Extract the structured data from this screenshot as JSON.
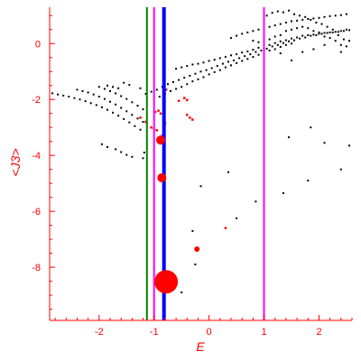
{
  "chart_data": {
    "type": "scatter",
    "title": "",
    "xlabel": "E",
    "ylabel": "<J3>",
    "xlim": [
      -2.9,
      2.6
    ],
    "ylim": [
      -9.9,
      1.3
    ],
    "x_ticks": [
      -2,
      -1,
      0,
      1,
      2
    ],
    "y_ticks": [
      0,
      -2,
      -4,
      -6,
      -8
    ],
    "axis_color": "#ff0000",
    "grid": false,
    "vertical_lines": [
      {
        "x": -1.13,
        "color": "#008000"
      },
      {
        "x": -1.0,
        "color": "#ff00ff"
      },
      {
        "x": -0.82,
        "color": "#0000ff"
      },
      {
        "x": 1.0,
        "color": "#ff00ff"
      }
    ],
    "series": [
      {
        "color": "#000000",
        "points": [
          [
            -2.85,
            -1.78
          ],
          [
            -2.75,
            -1.82
          ],
          [
            -2.65,
            -1.86
          ],
          [
            -2.55,
            -1.9
          ],
          [
            -2.45,
            -1.95
          ],
          [
            -2.35,
            -2.0
          ],
          [
            -2.25,
            -2.06
          ],
          [
            -2.15,
            -2.13
          ],
          [
            -2.05,
            -2.2
          ],
          [
            -1.95,
            -2.28
          ],
          [
            -1.85,
            -2.37
          ],
          [
            -1.75,
            -2.47
          ],
          [
            -1.65,
            -2.58
          ],
          [
            -1.55,
            -2.7
          ],
          [
            -1.45,
            -2.82
          ],
          [
            -1.35,
            -2.95
          ],
          [
            -1.25,
            -3.08
          ],
          [
            -2.4,
            -1.65
          ],
          [
            -2.3,
            -1.7
          ],
          [
            -2.2,
            -1.75
          ],
          [
            -2.1,
            -1.82
          ],
          [
            -2.0,
            -1.9
          ],
          [
            -1.9,
            -1.98
          ],
          [
            -1.8,
            -2.08
          ],
          [
            -1.7,
            -2.18
          ],
          [
            -1.6,
            -2.3
          ],
          [
            -1.5,
            -2.42
          ],
          [
            -1.4,
            -2.55
          ],
          [
            -1.3,
            -2.68
          ],
          [
            -1.2,
            -2.8
          ],
          [
            -2.0,
            -1.55
          ],
          [
            -1.9,
            -1.62
          ],
          [
            -1.8,
            -1.7
          ],
          [
            -1.7,
            -1.78
          ],
          [
            -1.6,
            -1.88
          ],
          [
            -1.5,
            -1.98
          ],
          [
            -1.4,
            -2.1
          ],
          [
            -1.3,
            -2.22
          ],
          [
            -1.2,
            -2.35
          ],
          [
            -1.95,
            -3.6
          ],
          [
            -1.85,
            -3.7
          ],
          [
            -1.7,
            -3.78
          ],
          [
            -1.6,
            -3.88
          ],
          [
            -1.5,
            -3.98
          ],
          [
            -1.4,
            -4.05
          ],
          [
            -1.2,
            -4.1
          ],
          [
            -1.18,
            -3.9
          ],
          [
            -1.85,
            -1.5
          ],
          [
            -1.75,
            -1.55
          ],
          [
            -1.65,
            -1.6
          ],
          [
            -1.55,
            -1.4
          ],
          [
            -1.45,
            -1.48
          ],
          [
            -1.25,
            -1.6
          ],
          [
            -1.15,
            -1.8
          ],
          [
            -1.05,
            -1.72
          ],
          [
            -0.95,
            -1.65
          ],
          [
            -0.85,
            -1.55
          ],
          [
            -0.75,
            -1.45
          ],
          [
            -0.65,
            -1.38
          ],
          [
            -0.55,
            -1.3
          ],
          [
            -0.45,
            -1.22
          ],
          [
            -0.35,
            -1.15
          ],
          [
            -0.25,
            -1.08
          ],
          [
            -0.15,
            -1.0
          ],
          [
            -0.05,
            -0.95
          ],
          [
            0.05,
            -0.88
          ],
          [
            0.15,
            -0.8
          ],
          [
            0.25,
            -0.72
          ],
          [
            0.35,
            -0.65
          ],
          [
            0.45,
            -0.6
          ],
          [
            0.55,
            -0.52
          ],
          [
            0.65,
            -0.45
          ],
          [
            0.75,
            -0.38
          ],
          [
            0.85,
            -0.3
          ],
          [
            0.95,
            -0.25
          ],
          [
            1.05,
            -0.18
          ],
          [
            1.15,
            -0.1
          ],
          [
            1.25,
            -0.05
          ],
          [
            1.35,
            0.02
          ],
          [
            1.45,
            0.08
          ],
          [
            1.55,
            0.12
          ],
          [
            1.65,
            0.18
          ],
          [
            1.75,
            0.22
          ],
          [
            1.85,
            0.28
          ],
          [
            1.95,
            0.3
          ],
          [
            2.05,
            0.35
          ],
          [
            2.15,
            0.38
          ],
          [
            2.25,
            0.4
          ],
          [
            2.35,
            0.42
          ],
          [
            2.45,
            0.45
          ],
          [
            2.55,
            0.48
          ],
          [
            -0.9,
            -1.9
          ],
          [
            -0.8,
            -1.8
          ],
          [
            -0.7,
            -1.7
          ],
          [
            -0.6,
            -1.62
          ],
          [
            -0.5,
            -1.55
          ],
          [
            -0.4,
            -1.45
          ],
          [
            -0.3,
            -1.35
          ],
          [
            -0.2,
            -1.28
          ],
          [
            -0.1,
            -1.2
          ],
          [
            0.0,
            -1.1
          ],
          [
            0.1,
            -1.02
          ],
          [
            0.2,
            -0.95
          ],
          [
            0.3,
            -0.85
          ],
          [
            0.4,
            -0.78
          ],
          [
            0.5,
            -0.7
          ],
          [
            0.6,
            -0.62
          ],
          [
            0.7,
            -0.55
          ],
          [
            0.8,
            -0.48
          ],
          [
            0.9,
            -0.4
          ],
          [
            1.0,
            -0.32
          ],
          [
            1.1,
            -0.25
          ],
          [
            1.2,
            -0.2
          ],
          [
            1.3,
            -0.12
          ],
          [
            1.4,
            -0.05
          ],
          [
            1.5,
            0.0
          ],
          [
            -0.6,
            -0.9
          ],
          [
            -0.5,
            -0.85
          ],
          [
            -0.4,
            -0.8
          ],
          [
            -0.3,
            -0.75
          ],
          [
            -0.2,
            -0.72
          ],
          [
            -0.1,
            -0.68
          ],
          [
            0.0,
            -0.62
          ],
          [
            0.1,
            -0.58
          ],
          [
            0.2,
            -0.52
          ],
          [
            0.3,
            -0.48
          ],
          [
            0.4,
            -0.42
          ],
          [
            0.5,
            -0.38
          ],
          [
            0.6,
            -0.32
          ],
          [
            0.7,
            -0.28
          ],
          [
            0.8,
            -0.22
          ],
          [
            0.9,
            -0.15
          ],
          [
            1.0,
            -0.1
          ],
          [
            1.1,
            -0.05
          ],
          [
            1.2,
            0.02
          ],
          [
            1.3,
            0.08
          ],
          [
            1.4,
            0.12
          ],
          [
            1.5,
            0.18
          ],
          [
            1.6,
            0.22
          ],
          [
            1.7,
            0.28
          ],
          [
            1.8,
            0.3
          ],
          [
            1.9,
            0.32
          ],
          [
            2.0,
            0.35
          ],
          [
            2.1,
            0.38
          ],
          [
            2.2,
            0.4
          ],
          [
            2.3,
            0.42
          ],
          [
            2.4,
            0.45
          ],
          [
            2.5,
            0.5
          ],
          [
            0.4,
            0.2
          ],
          [
            0.5,
            0.28
          ],
          [
            0.6,
            0.35
          ],
          [
            0.7,
            0.4
          ],
          [
            0.8,
            0.45
          ],
          [
            0.9,
            0.5
          ],
          [
            1.0,
            0.55
          ],
          [
            1.1,
            0.6
          ],
          [
            1.2,
            0.65
          ],
          [
            1.3,
            0.7
          ],
          [
            1.4,
            0.75
          ],
          [
            1.5,
            0.8
          ],
          [
            1.6,
            0.82
          ],
          [
            1.7,
            0.85
          ],
          [
            1.8,
            0.88
          ],
          [
            1.9,
            0.9
          ],
          [
            2.0,
            0.92
          ],
          [
            2.1,
            0.95
          ],
          [
            2.2,
            0.98
          ],
          [
            2.3,
            1.0
          ],
          [
            2.4,
            1.02
          ],
          [
            2.5,
            1.05
          ],
          [
            1.05,
            1.0
          ],
          [
            1.15,
            1.1
          ],
          [
            1.25,
            1.15
          ],
          [
            1.35,
            1.12
          ],
          [
            1.45,
            1.18
          ],
          [
            1.55,
            1.05
          ],
          [
            1.65,
            1.0
          ],
          [
            1.75,
            0.95
          ],
          [
            1.85,
            0.85
          ],
          [
            1.95,
            0.75
          ],
          [
            2.05,
            0.7
          ],
          [
            2.15,
            0.6
          ],
          [
            2.25,
            0.5
          ],
          [
            2.35,
            0.3
          ],
          [
            2.45,
            0.15
          ],
          [
            2.55,
            0.1
          ],
          [
            0.8,
            0.1
          ],
          [
            0.9,
            0.05
          ],
          [
            1.0,
            0.0
          ],
          [
            1.1,
            0.15
          ],
          [
            1.2,
            0.25
          ],
          [
            1.3,
            0.3
          ],
          [
            1.4,
            0.45
          ],
          [
            1.5,
            0.5
          ],
          [
            1.6,
            0.55
          ],
          [
            1.7,
            0.6
          ],
          [
            1.8,
            0.55
          ],
          [
            1.9,
            0.45
          ],
          [
            2.0,
            0.4
          ],
          [
            2.1,
            0.25
          ],
          [
            2.2,
            0.2
          ],
          [
            2.3,
            0.1
          ],
          [
            2.4,
            -0.05
          ],
          [
            2.5,
            -0.1
          ],
          [
            1.5,
            -0.6
          ],
          [
            1.9,
            -0.2
          ],
          [
            1.7,
            -0.3
          ],
          [
            2.1,
            -0.05
          ],
          [
            1.3,
            -0.35
          ],
          [
            2.4,
            -0.3
          ],
          [
            1.85,
            -3.0
          ],
          [
            1.45,
            -3.35
          ],
          [
            2.1,
            -3.55
          ],
          [
            2.55,
            -3.65
          ],
          [
            2.4,
            -4.5
          ],
          [
            1.8,
            -4.9
          ],
          [
            1.35,
            -5.35
          ],
          [
            0.35,
            -4.6
          ],
          [
            -0.15,
            -5.1
          ],
          [
            0.85,
            -5.65
          ],
          [
            0.5,
            -6.25
          ],
          [
            -0.3,
            -6.7
          ],
          [
            -0.25,
            -7.9
          ],
          [
            -0.5,
            -8.9
          ]
        ]
      },
      {
        "color": "#ff0000",
        "points": [
          [
            -0.78,
            -1.65
          ],
          [
            -0.45,
            -1.95
          ],
          [
            -0.4,
            -2.02
          ],
          [
            -0.55,
            -2.05
          ],
          [
            -0.92,
            -2.4
          ],
          [
            -0.98,
            -2.45
          ],
          [
            -0.88,
            -2.5
          ],
          [
            -0.4,
            -2.55
          ],
          [
            -0.35,
            -2.65
          ],
          [
            -1.25,
            -2.65
          ],
          [
            -0.3,
            -2.72
          ],
          [
            -1.15,
            -2.8
          ],
          [
            -0.8,
            -2.85
          ],
          [
            -1.05,
            -3.0
          ],
          [
            -1.0,
            -3.05
          ],
          [
            -0.95,
            -3.1
          ],
          [
            -0.85,
            -3.3
          ],
          [
            0.3,
            -6.6
          ]
        ]
      }
    ],
    "bubbles": [
      {
        "x": -0.88,
        "y": -3.45,
        "size": 5
      },
      {
        "x": -0.86,
        "y": -4.8,
        "size": 5
      },
      {
        "x": -0.22,
        "y": -7.35,
        "size": 3
      },
      {
        "x": -0.78,
        "y": -8.52,
        "size": 13
      }
    ]
  }
}
